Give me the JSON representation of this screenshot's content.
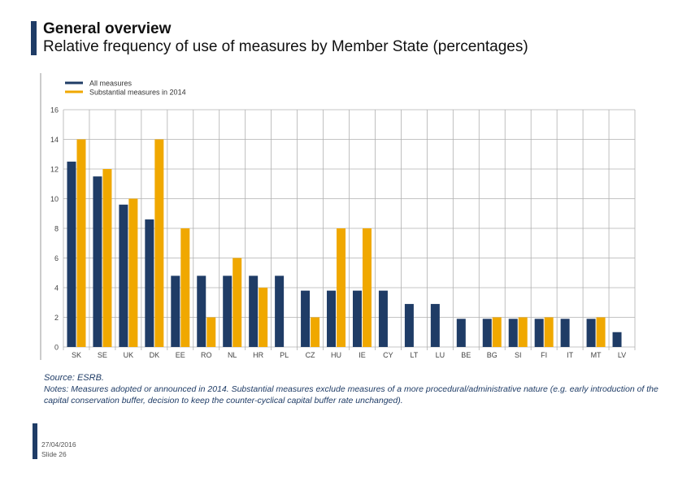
{
  "header": {
    "title": "General overview",
    "subtitle": "Relative frequency of use of measures by Member State (percentages)"
  },
  "colors": {
    "all_measures": "#1f3c66",
    "substantial": "#f0a800",
    "accent_bar": "#1f3c66",
    "grid": "#b0b0b0"
  },
  "chart_data": {
    "type": "bar",
    "title": "",
    "xlabel": "",
    "ylabel": "",
    "ylim": [
      0,
      16
    ],
    "yticks": [
      0,
      2,
      4,
      6,
      8,
      10,
      12,
      14,
      16
    ],
    "grid": true,
    "legend_position": "top-left",
    "categories": [
      "SK",
      "SE",
      "UK",
      "DK",
      "EE",
      "RO",
      "NL",
      "HR",
      "PL",
      "CZ",
      "HU",
      "IE",
      "CY",
      "LT",
      "LU",
      "BE",
      "BG",
      "SI",
      "FI",
      "IT",
      "MT",
      "LV"
    ],
    "series": [
      {
        "name": "All measures",
        "color": "#1f3c66",
        "values": [
          12.5,
          11.5,
          9.6,
          8.6,
          4.8,
          4.8,
          4.8,
          4.8,
          4.8,
          3.8,
          3.8,
          3.8,
          3.8,
          2.9,
          2.9,
          1.9,
          1.9,
          1.9,
          1.9,
          1.9,
          1.9,
          1.0
        ]
      },
      {
        "name": "Substantial measures in 2014",
        "color": "#f0a800",
        "values": [
          14,
          12,
          10,
          14,
          8,
          2,
          6,
          4,
          0,
          2,
          8,
          8,
          0,
          0,
          0,
          0,
          2,
          2,
          2,
          0,
          2,
          0
        ]
      }
    ]
  },
  "source": "Source: ESRB.",
  "notes": "Notes: Measures adopted or announced in 2014. Substantial measures exclude measures of a more procedural/administrative nature (e.g. early introduction of the capital conservation buffer, decision to keep the counter-cyclical capital buffer rate unchanged).",
  "footer": {
    "date": "27/04/2016",
    "slide": "Slide 26"
  }
}
